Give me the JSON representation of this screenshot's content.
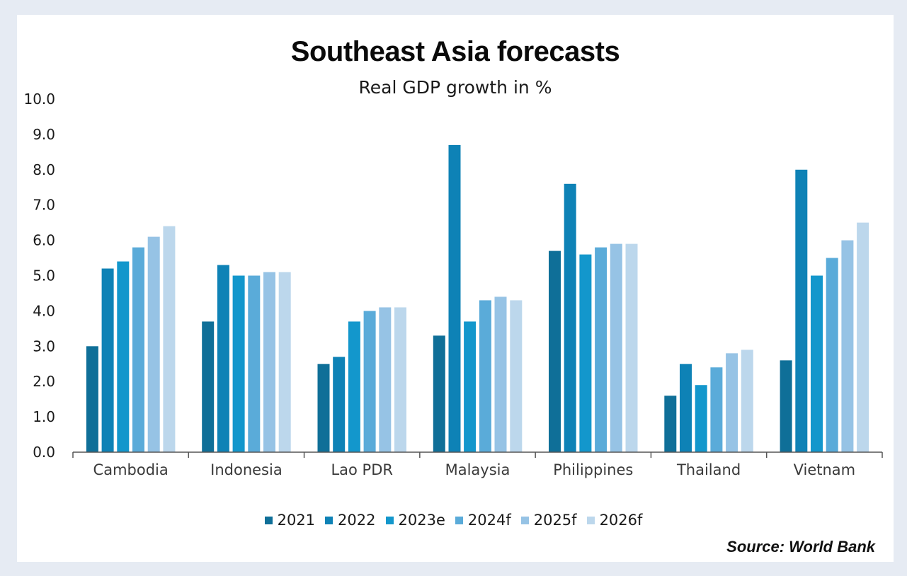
{
  "title": "Southeast Asia forecasts",
  "subtitle": "Real GDP growth in %",
  "source": "Source: World Bank",
  "chart_data": {
    "type": "bar",
    "title": "Southeast Asia forecasts",
    "subtitle": "Real GDP growth in %",
    "xlabel": "",
    "ylabel": "",
    "ylim": [
      0,
      10
    ],
    "yticks": [
      "0.0",
      "1.0",
      "2.0",
      "3.0",
      "4.0",
      "5.0",
      "6.0",
      "7.0",
      "8.0",
      "9.0",
      "10.0"
    ],
    "grid": false,
    "legend_position": "bottom",
    "categories": [
      "Cambodia",
      "Indonesia",
      "Lao PDR",
      "Malaysia",
      "Philippines",
      "Thailand",
      "Vietnam"
    ],
    "series": [
      {
        "name": "2021",
        "color": "#0f6f98",
        "values": [
          3.0,
          3.7,
          2.5,
          3.3,
          5.7,
          1.6,
          2.6
        ]
      },
      {
        "name": "2022",
        "color": "#0e82b6",
        "values": [
          5.2,
          5.3,
          2.7,
          8.7,
          7.6,
          2.5,
          8.0
        ]
      },
      {
        "name": "2023e",
        "color": "#1397cc",
        "values": [
          5.4,
          5.0,
          3.7,
          3.7,
          5.6,
          1.9,
          5.0
        ]
      },
      {
        "name": "2024f",
        "color": "#5aabd9",
        "values": [
          5.8,
          5.0,
          4.0,
          4.3,
          5.8,
          2.4,
          5.5
        ]
      },
      {
        "name": "2025f",
        "color": "#96c3e5",
        "values": [
          6.1,
          5.1,
          4.1,
          4.4,
          5.9,
          2.8,
          6.0
        ]
      },
      {
        "name": "2026f",
        "color": "#bcd7ec",
        "values": [
          6.4,
          5.1,
          4.1,
          4.3,
          5.9,
          2.9,
          6.5
        ]
      }
    ]
  }
}
